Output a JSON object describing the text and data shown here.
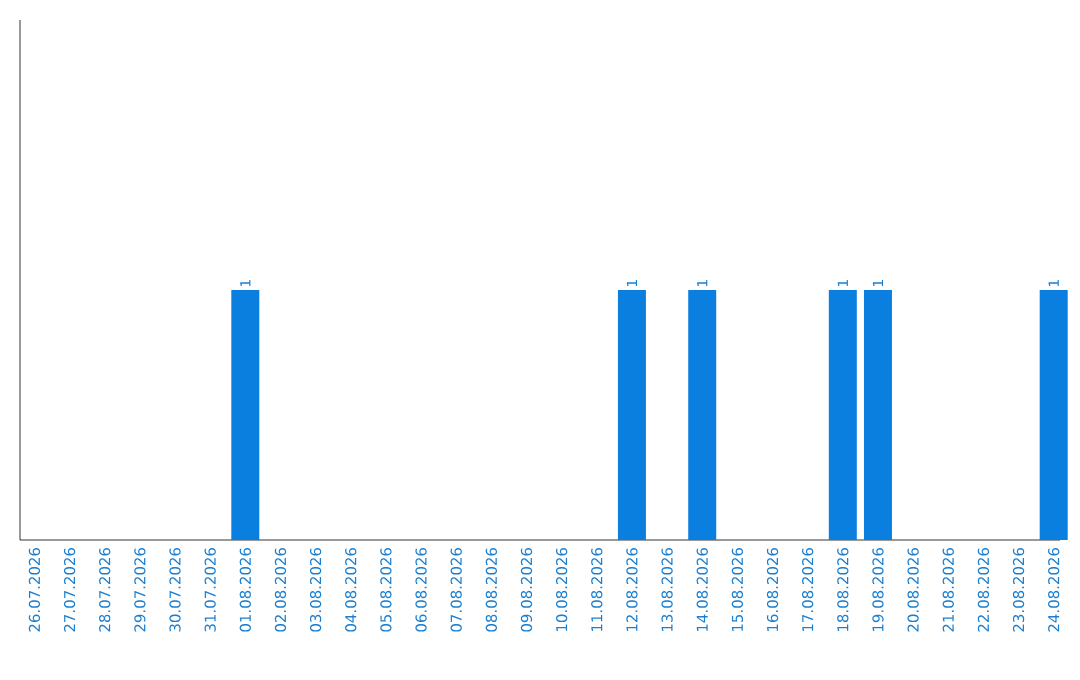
{
  "chart_data": {
    "type": "bar",
    "categories": [
      "26.07.2026",
      "27.07.2026",
      "28.07.2026",
      "29.07.2026",
      "30.07.2026",
      "31.07.2026",
      "01.08.2026",
      "02.08.2026",
      "03.08.2026",
      "04.08.2026",
      "05.08.2026",
      "06.08.2026",
      "07.08.2026",
      "08.08.2026",
      "09.08.2026",
      "10.08.2026",
      "11.08.2026",
      "12.08.2026",
      "13.08.2026",
      "14.08.2026",
      "15.08.2026",
      "16.08.2026",
      "17.08.2026",
      "18.08.2026",
      "19.08.2026",
      "20.08.2026",
      "21.08.2026",
      "22.08.2026",
      "23.08.2026",
      "24.08.2026"
    ],
    "values": [
      0,
      0,
      0,
      0,
      0,
      0,
      1,
      0,
      0,
      0,
      0,
      0,
      0,
      0,
      0,
      0,
      0,
      1,
      0,
      1,
      0,
      0,
      0,
      1,
      1,
      0,
      0,
      0,
      0,
      1
    ],
    "value_labels": [
      null,
      null,
      null,
      null,
      null,
      null,
      "1",
      null,
      null,
      null,
      null,
      null,
      null,
      null,
      null,
      null,
      null,
      "1",
      null,
      "1",
      null,
      null,
      null,
      "1",
      "1",
      null,
      null,
      null,
      null,
      "1"
    ],
    "color": "#0a7fe0",
    "ylim": [
      0,
      2.08
    ],
    "tick_labels": "x"
  }
}
